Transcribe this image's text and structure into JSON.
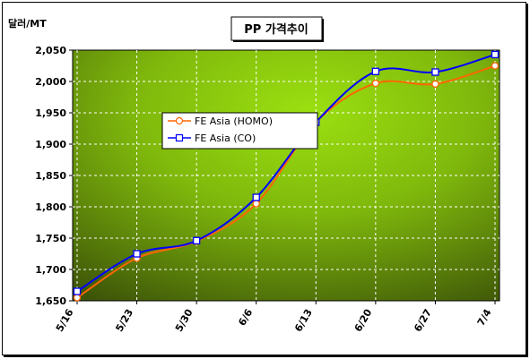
{
  "chart_data": {
    "type": "line",
    "title": "PP 가격추이",
    "ylabel": "달러/MT",
    "categories": [
      "5/16",
      "5/23",
      "5/30",
      "6/6",
      "6/13",
      "6/20",
      "6/27",
      "7/4"
    ],
    "ylim": [
      1650,
      2050
    ],
    "yticks": [
      1650,
      1700,
      1750,
      1800,
      1850,
      1900,
      1950,
      2000,
      2050
    ],
    "ytick_labels": [
      "1,650",
      "1,700",
      "1,750",
      "1,800",
      "1,850",
      "1,900",
      "1,950",
      "2,000",
      "2,050"
    ],
    "grid": true,
    "legend_position": "center-left",
    "series": [
      {
        "name": "FE Asia (HOMO)",
        "color": "#ff6600",
        "marker": "circle",
        "values": [
          1655,
          1718,
          1745,
          1805,
          1935,
          1997,
          1996,
          2025
        ]
      },
      {
        "name": "FE Asia (CO)",
        "color": "#0000ff",
        "marker": "square",
        "values": [
          1665,
          1725,
          1746,
          1815,
          1935,
          2016,
          2015,
          2043
        ]
      }
    ]
  }
}
